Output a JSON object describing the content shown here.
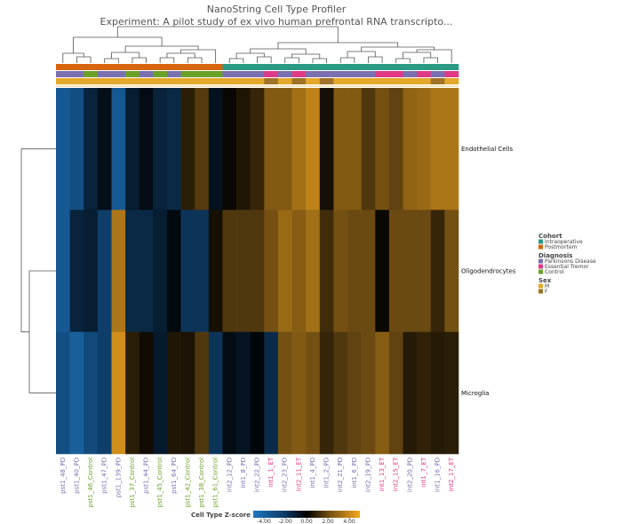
{
  "title": "NanoString Cell Type Profiler",
  "subtitle": "Experiment: A pilot study of ex vivo human prefrontal RNA transcripto...",
  "colors": {
    "Intraoperative": "#2a9a85",
    "Postmortem": "#d8650e",
    "Parkinsons Disease": "#7a70b0",
    "Essential Tremor": "#e03a86",
    "Control": "#69a227",
    "M": "#e4a82a",
    "F": "#9f7328"
  },
  "legend": {
    "groups": [
      {
        "title": "Cohort",
        "items": [
          {
            "label": "Intraoperative",
            "key": "Intraoperative"
          },
          {
            "label": "Postmortem",
            "key": "Postmortem"
          }
        ]
      },
      {
        "title": "Diagnosis",
        "items": [
          {
            "label": "Parkinsons Disease",
            "key": "Parkinsons Disease"
          },
          {
            "label": "Essential Tremor",
            "key": "Essential Tremor"
          },
          {
            "label": "Control",
            "key": "Control"
          }
        ]
      },
      {
        "title": "Sex",
        "items": [
          {
            "label": "M",
            "key": "M"
          },
          {
            "label": "F",
            "key": "F"
          }
        ]
      }
    ]
  },
  "colorbar": {
    "title": "Cell Type Z-score",
    "min": -5,
    "max": 5,
    "ticks": [
      "-4.00",
      "-2.00",
      "0.00",
      "2.00",
      "4.00"
    ],
    "tick_values": [
      -4,
      -2,
      0,
      2,
      4
    ]
  },
  "chart_data": {
    "type": "heatmap",
    "rows": [
      "Endothelial Cells",
      "Oligodendrocytes",
      "Microglia"
    ],
    "columns": [
      "pst1_48_PD",
      "pst1_40_PD",
      "pst1_46_Control",
      "pst1_47_PD",
      "pst1_139_PD",
      "pst1_37_Control",
      "pst1_44_PD",
      "pst1_45_Control",
      "pst1_64_PD",
      "pst1_42_Control",
      "pst1_38_Control",
      "pst1_61_Control",
      "int2_12_PD",
      "int1_8_PD",
      "int2_22_PD",
      "int1_1_ET",
      "int2_23_PD",
      "int2_11_ET",
      "int1_4_PD",
      "int1_2_PD",
      "int2_21_PD",
      "int1_6_PD",
      "int2_19_PD",
      "int1_13_ET",
      "int2_15_ET",
      "int2_20_PD",
      "int1_7_ET",
      "int1_16_PD",
      "int2_17_ET"
    ],
    "cohort": [
      "Postmortem",
      "Postmortem",
      "Postmortem",
      "Postmortem",
      "Postmortem",
      "Postmortem",
      "Postmortem",
      "Postmortem",
      "Postmortem",
      "Postmortem",
      "Postmortem",
      "Postmortem",
      "Intraoperative",
      "Intraoperative",
      "Intraoperative",
      "Intraoperative",
      "Intraoperative",
      "Intraoperative",
      "Intraoperative",
      "Intraoperative",
      "Intraoperative",
      "Intraoperative",
      "Intraoperative",
      "Intraoperative",
      "Intraoperative",
      "Intraoperative",
      "Intraoperative",
      "Intraoperative",
      "Intraoperative"
    ],
    "diagnosis": [
      "Parkinsons Disease",
      "Parkinsons Disease",
      "Control",
      "Parkinsons Disease",
      "Parkinsons Disease",
      "Control",
      "Parkinsons Disease",
      "Control",
      "Parkinsons Disease",
      "Control",
      "Control",
      "Control",
      "Parkinsons Disease",
      "Parkinsons Disease",
      "Parkinsons Disease",
      "Essential Tremor",
      "Parkinsons Disease",
      "Essential Tremor",
      "Parkinsons Disease",
      "Parkinsons Disease",
      "Parkinsons Disease",
      "Parkinsons Disease",
      "Parkinsons Disease",
      "Essential Tremor",
      "Essential Tremor",
      "Parkinsons Disease",
      "Essential Tremor",
      "Parkinsons Disease",
      "Essential Tremor"
    ],
    "sex": [
      "M",
      "M",
      "M",
      "M",
      "M",
      "M",
      "M",
      "M",
      "M",
      "M",
      "M",
      "M",
      "M",
      "M",
      "M",
      "F",
      "M",
      "F",
      "M",
      "F",
      "M",
      "M",
      "M",
      "M",
      "M",
      "M",
      "M",
      "F",
      "M"
    ],
    "values": [
      [
        -3.5,
        -3.0,
        -1.2,
        -0.5,
        -3.5,
        -1.0,
        -0.4,
        -1.2,
        -1.4,
        0.8,
        1.6,
        -0.6,
        0.2,
        0.6,
        1.0,
        2.5,
        2.5,
        3.2,
        3.8,
        0.4,
        2.5,
        2.5,
        1.5,
        2.2,
        1.8,
        2.8,
        3.0,
        3.4,
        3.4
      ],
      [
        -3.5,
        -1.2,
        -1.0,
        -2.2,
        3.4,
        -1.4,
        -1.4,
        -1.0,
        -0.3,
        -1.8,
        -1.8,
        0.4,
        1.5,
        1.5,
        1.5,
        2.2,
        3.0,
        2.6,
        3.2,
        1.2,
        2.2,
        2.0,
        2.0,
        0.2,
        2.0,
        2.0,
        2.0,
        1.0,
        2.2
      ],
      [
        -3.0,
        -3.8,
        -2.8,
        -2.2,
        4.2,
        0.8,
        0.3,
        -0.9,
        0.6,
        0.5,
        1.5,
        -1.8,
        -0.4,
        -0.7,
        -0.2,
        -1.5,
        2.2,
        2.5,
        2.2,
        1.0,
        1.5,
        1.8,
        2.0,
        2.6,
        1.8,
        0.7,
        0.9,
        0.7,
        0.8
      ]
    ]
  }
}
